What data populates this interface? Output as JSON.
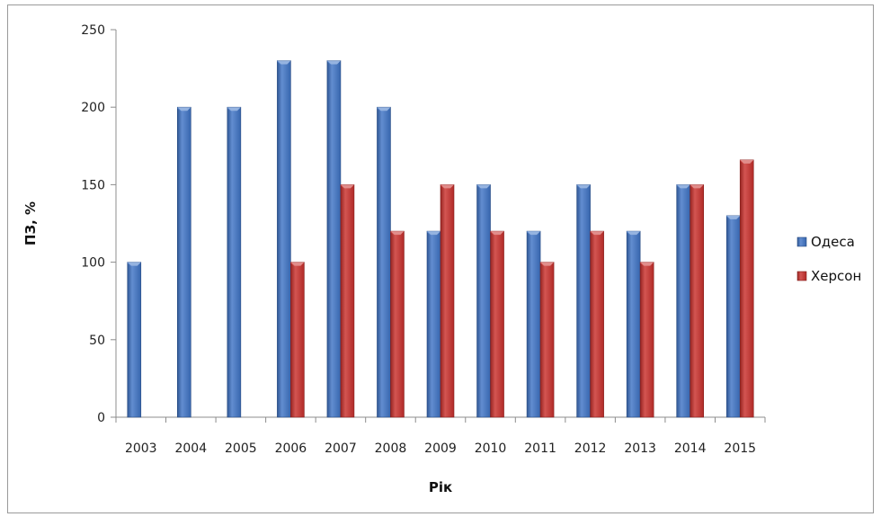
{
  "chart_data": {
    "type": "bar",
    "categories": [
      "2003",
      "2004",
      "2005",
      "2006",
      "2007",
      "2008",
      "2009",
      "2010",
      "2011",
      "2012",
      "2013",
      "2014",
      "2015"
    ],
    "series": [
      {
        "name": "Одеса",
        "color": "#3f74c6",
        "values": [
          100,
          200,
          200,
          230,
          230,
          200,
          120,
          150,
          120,
          150,
          120,
          150,
          130
        ]
      },
      {
        "name": "Херсон",
        "color": "#c9302c",
        "values": [
          null,
          null,
          null,
          100,
          150,
          120,
          150,
          120,
          100,
          120,
          100,
          150,
          166
        ]
      }
    ],
    "xlabel": "Рік",
    "ylabel": "ПЗ, %",
    "ylim": [
      0,
      250
    ],
    "yticks": [
      "0",
      "50",
      "100",
      "150",
      "200",
      "250"
    ],
    "grid": false,
    "legend_position": "right"
  }
}
